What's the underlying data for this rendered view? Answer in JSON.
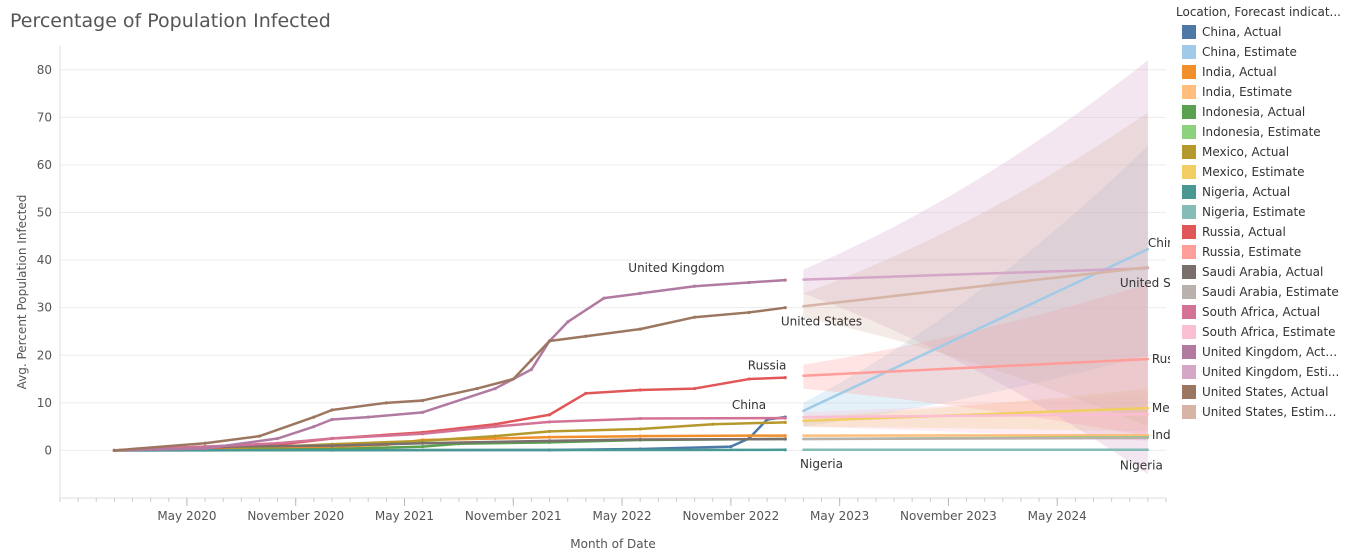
{
  "chart_data": {
    "type": "line",
    "title": "Percentage of Population Infected",
    "xlabel": "Month of Date",
    "ylabel": "Avg. Percent Population Infected",
    "ylim": [
      -10,
      85
    ],
    "yticks": [
      0,
      10,
      20,
      30,
      40,
      50,
      60,
      70,
      80
    ],
    "xticks": [
      "May 2020",
      "November 2020",
      "May 2021",
      "November 2021",
      "May 2022",
      "November 2022",
      "May 2023",
      "November 2023",
      "May 2024"
    ],
    "xlim": [
      "2019-10",
      "2024-11"
    ],
    "grid": true,
    "legend_position": "right",
    "legend_title": "Location, Forecast indicat...",
    "legend": [
      {
        "label": "China, Actual",
        "color": "#4e79a7"
      },
      {
        "label": "China, Estimate",
        "color": "#a0cbe8"
      },
      {
        "label": "India, Actual",
        "color": "#f28e2b"
      },
      {
        "label": "India, Estimate",
        "color": "#ffbe7d"
      },
      {
        "label": "Indonesia, Actual",
        "color": "#59a14f"
      },
      {
        "label": "Indonesia, Estimate",
        "color": "#8cd17d"
      },
      {
        "label": "Mexico, Actual",
        "color": "#b6992d"
      },
      {
        "label": "Mexico, Estimate",
        "color": "#f1ce63"
      },
      {
        "label": "Nigeria, Actual",
        "color": "#499894"
      },
      {
        "label": "Nigeria, Estimate",
        "color": "#86bcb6"
      },
      {
        "label": "Russia, Actual",
        "color": "#e15759"
      },
      {
        "label": "Russia, Estimate",
        "color": "#ff9d9a"
      },
      {
        "label": "Saudi Arabia, Actual",
        "color": "#79706e"
      },
      {
        "label": "Saudi Arabia, Estimate",
        "color": "#bab0ac"
      },
      {
        "label": "South Africa, Actual",
        "color": "#d37295"
      },
      {
        "label": "South Africa, Estimate",
        "color": "#fabfd2"
      },
      {
        "label": "United Kingdom, Actual",
        "color": "#b07aa1"
      },
      {
        "label": "United Kingdom, Esti...",
        "color": "#d4a6c8"
      },
      {
        "label": "United States, Actual",
        "color": "#9d7660"
      },
      {
        "label": "United States, Estima...",
        "color": "#d7b5a6"
      }
    ],
    "series": [
      {
        "name": "China, Actual",
        "color": "#4e79a7",
        "x": [
          "2020-01",
          "2021-01",
          "2022-01",
          "2022-06",
          "2022-11",
          "2022-12",
          "2023-01",
          "2023-02"
        ],
        "y": [
          0,
          0.05,
          0.1,
          0.3,
          0.8,
          2.5,
          6.5,
          7.0
        ]
      },
      {
        "name": "China, Estimate",
        "color": "#a0cbe8",
        "x": [
          "2023-03",
          "2024-10"
        ],
        "y": [
          8.3,
          42.3
        ],
        "band_lo": [
          5.0,
          20.0
        ],
        "band_hi": [
          10.0,
          64.0
        ]
      },
      {
        "name": "India, Actual",
        "color": "#f28e2b",
        "x": [
          "2020-01",
          "2020-06",
          "2020-10",
          "2021-01",
          "2021-04",
          "2021-06",
          "2021-10",
          "2022-01",
          "2022-06",
          "2022-12",
          "2023-02"
        ],
        "y": [
          0,
          0.4,
          0.6,
          0.8,
          1.2,
          2.2,
          2.5,
          2.8,
          3.0,
          3.1,
          3.1
        ]
      },
      {
        "name": "India, Estimate",
        "color": "#ffbe7d",
        "x": [
          "2023-03",
          "2024-10"
        ],
        "y": [
          3.1,
          3.2
        ]
      },
      {
        "name": "Indonesia, Actual",
        "color": "#59a14f",
        "x": [
          "2020-01",
          "2020-06",
          "2021-01",
          "2021-06",
          "2021-08",
          "2022-01",
          "2022-06",
          "2023-02"
        ],
        "y": [
          0,
          0.05,
          0.3,
          0.8,
          1.4,
          1.7,
          2.2,
          2.4
        ]
      },
      {
        "name": "Indonesia, Estimate",
        "color": "#8cd17d",
        "x": [
          "2023-03",
          "2024-10"
        ],
        "y": [
          2.4,
          2.8
        ]
      },
      {
        "name": "Mexico, Actual",
        "color": "#b6992d",
        "x": [
          "2020-01",
          "2020-06",
          "2020-10",
          "2021-01",
          "2021-06",
          "2021-10",
          "2022-01",
          "2022-06",
          "2022-10",
          "2023-02"
        ],
        "y": [
          0,
          0.3,
          0.8,
          1.3,
          2.0,
          3.0,
          4.0,
          4.5,
          5.5,
          5.9
        ]
      },
      {
        "name": "Mexico, Estimate",
        "color": "#f1ce63",
        "x": [
          "2023-03",
          "2024-10"
        ],
        "y": [
          6.2,
          8.9
        ],
        "band_lo": [
          5.0,
          4.0
        ],
        "band_hi": [
          7.0,
          13.0
        ]
      },
      {
        "name": "Nigeria, Actual",
        "color": "#499894",
        "x": [
          "2020-01",
          "2023-02"
        ],
        "y": [
          0,
          0.13
        ]
      },
      {
        "name": "Nigeria, Estimate",
        "color": "#86bcb6",
        "x": [
          "2023-03",
          "2024-10"
        ],
        "y": [
          0.13,
          0.15
        ]
      },
      {
        "name": "Russia, Actual",
        "color": "#e15759",
        "x": [
          "2020-01",
          "2020-06",
          "2020-10",
          "2021-01",
          "2021-06",
          "2021-10",
          "2022-01",
          "2022-03",
          "2022-06",
          "2022-09",
          "2022-12",
          "2023-02"
        ],
        "y": [
          0,
          0.5,
          1.2,
          2.5,
          3.8,
          5.5,
          7.5,
          12.0,
          12.7,
          13.0,
          15.0,
          15.3
        ]
      },
      {
        "name": "Russia, Estimate",
        "color": "#ff9d9a",
        "x": [
          "2023-03",
          "2024-10"
        ],
        "y": [
          15.7,
          19.2
        ],
        "band_lo": [
          13.0,
          3.0
        ],
        "band_hi": [
          18.0,
          35.0
        ]
      },
      {
        "name": "Saudi Arabia, Actual",
        "color": "#79706e",
        "x": [
          "2020-01",
          "2020-06",
          "2021-01",
          "2021-06",
          "2022-01",
          "2022-06",
          "2023-02"
        ],
        "y": [
          0,
          0.8,
          1.0,
          1.5,
          2.0,
          2.3,
          2.4
        ]
      },
      {
        "name": "Saudi Arabia, Estimate",
        "color": "#bab0ac",
        "x": [
          "2023-03",
          "2024-10"
        ],
        "y": [
          2.4,
          2.6
        ]
      },
      {
        "name": "South Africa, Actual",
        "color": "#d37295",
        "x": [
          "2020-01",
          "2020-06",
          "2020-10",
          "2021-01",
          "2021-06",
          "2021-10",
          "2022-01",
          "2022-06",
          "2023-02"
        ],
        "y": [
          0,
          0.8,
          1.5,
          2.5,
          3.5,
          5.0,
          6.0,
          6.7,
          6.8
        ]
      },
      {
        "name": "South Africa, Estimate",
        "color": "#fabfd2",
        "x": [
          "2023-03",
          "2024-10"
        ],
        "y": [
          7.0,
          7.6
        ],
        "band_lo": [
          5.0,
          2.0
        ],
        "band_hi": [
          8.0,
          12.0
        ]
      },
      {
        "name": "United Kingdom, Actual",
        "color": "#b07aa1",
        "x": [
          "2020-01",
          "2020-06",
          "2020-10",
          "2020-12",
          "2021-01",
          "2021-03",
          "2021-06",
          "2021-10",
          "2021-12",
          "2022-01",
          "2022-02",
          "2022-04",
          "2022-06",
          "2022-09",
          "2022-12",
          "2023-02"
        ],
        "y": [
          0,
          0.4,
          2.5,
          5.0,
          6.5,
          7.0,
          8.0,
          13.0,
          17.0,
          23.0,
          27.0,
          32.0,
          33.0,
          34.5,
          35.3,
          35.8
        ]
      },
      {
        "name": "United Kingdom, Estimate",
        "color": "#d4a6c8",
        "x": [
          "2023-03",
          "2024-10"
        ],
        "y": [
          35.9,
          38.3
        ],
        "band_lo": [
          33.0,
          -5.0
        ],
        "band_hi": [
          38.0,
          82.0
        ]
      },
      {
        "name": "United States, Actual",
        "color": "#9d7660",
        "x": [
          "2020-01",
          "2020-06",
          "2020-09",
          "2020-12",
          "2021-01",
          "2021-04",
          "2021-06",
          "2021-09",
          "2021-11",
          "2021-12",
          "2022-01",
          "2022-03",
          "2022-06",
          "2022-09",
          "2022-12",
          "2023-02"
        ],
        "y": [
          0,
          1.5,
          3.0,
          7.0,
          8.5,
          10.0,
          10.5,
          13.0,
          15.0,
          19.0,
          23.0,
          24.0,
          25.5,
          28.0,
          29.0,
          30.0
        ]
      },
      {
        "name": "United States, Estimate",
        "color": "#d7b5a6",
        "x": [
          "2023-03",
          "2024-10"
        ],
        "y": [
          30.3,
          38.5
        ],
        "band_lo": [
          28.0,
          5.0
        ],
        "band_hi": [
          33.0,
          71.0
        ]
      }
    ],
    "annotations": [
      {
        "text": "United Kingdom",
        "x": "2022-08",
        "y": 35.8,
        "pos": "above"
      },
      {
        "text": "United States",
        "x": "2023-04",
        "y": 30.0,
        "pos": "below"
      },
      {
        "text": "Russia",
        "x": "2023-01",
        "y": 15.3,
        "pos": "above"
      },
      {
        "text": "China",
        "x": "2022-12",
        "y": 7.0,
        "pos": "above"
      },
      {
        "text": "Nigeria",
        "x": "2023-04",
        "y": 0.1,
        "pos": "below"
      },
      {
        "text": "China",
        "x": "2024-10",
        "y": 42.3,
        "pos": "right-above"
      },
      {
        "text": "United States",
        "x": "2024-10",
        "y": 38.5,
        "pos": "right-below"
      },
      {
        "text": "Russia",
        "x": "2024-10",
        "y": 19.2,
        "pos": "right"
      },
      {
        "text": "Mexico",
        "x": "2024-10",
        "y": 8.9,
        "pos": "right"
      },
      {
        "text": "India",
        "x": "2024-10",
        "y": 3.2,
        "pos": "right"
      },
      {
        "text": "Nigeria",
        "x": "2024-10",
        "y": 0.15,
        "pos": "right-below"
      }
    ]
  }
}
